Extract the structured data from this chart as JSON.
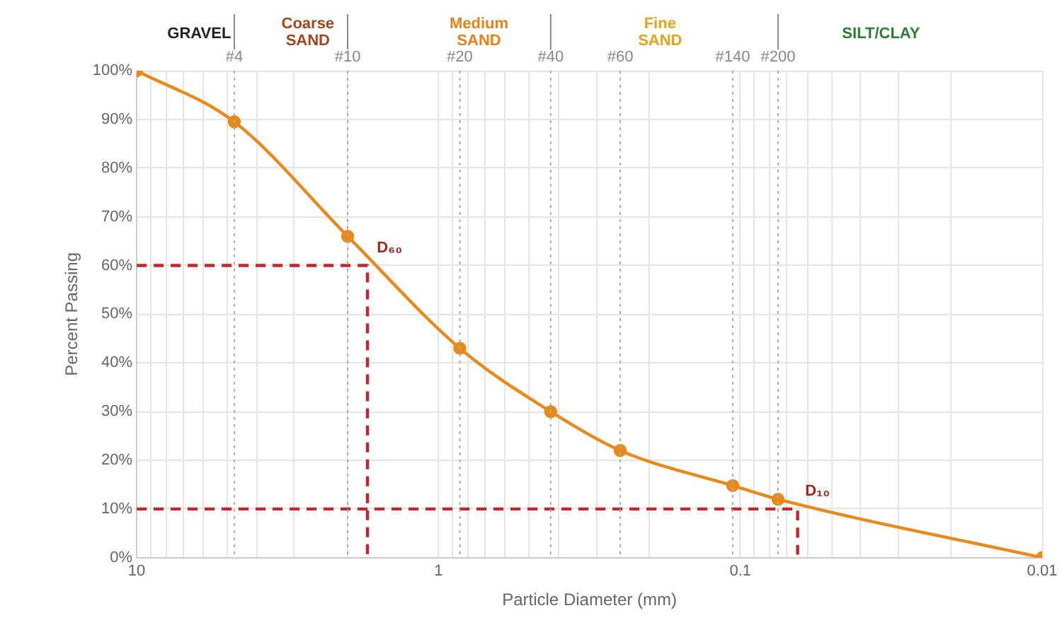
{
  "chart_data": {
    "type": "line",
    "xlabel": "Particle Diameter (mm)",
    "ylabel": "Percent Passing",
    "log": "x",
    "grid": true,
    "legend": false,
    "xlim": [
      10,
      0.01
    ],
    "xticks": [
      10,
      {
        "value": 9,
        "label": null
      },
      {
        "value": 8,
        "label": null
      },
      {
        "value": 7,
        "label": null
      },
      {
        "value": 6,
        "label": null
      },
      {
        "value": 5,
        "label": null
      },
      {
        "value": 4,
        "label": null
      },
      {
        "value": 3,
        "label": null
      },
      {
        "value": 2,
        "label": null
      },
      1,
      {
        "value": 0.9,
        "label": null
      },
      {
        "value": 0.8,
        "label": null
      },
      {
        "value": 0.7,
        "label": null
      },
      {
        "value": 0.6,
        "label": null
      },
      {
        "value": 0.5,
        "label": null
      },
      {
        "value": 0.4,
        "label": null
      },
      {
        "value": 0.3,
        "label": null
      },
      {
        "value": 0.2,
        "label": null
      },
      0.1,
      {
        "value": 0.09,
        "label": null
      },
      {
        "value": 0.08,
        "label": null
      },
      {
        "value": 0.07,
        "label": null
      },
      {
        "value": 0.06,
        "label": null
      },
      {
        "value": 0.05,
        "label": null
      },
      {
        "value": 0.04,
        "label": null
      },
      {
        "value": 0.03,
        "label": null
      },
      {
        "value": 0.02,
        "label": null
      },
      0.01
    ],
    "ylim": [
      0,
      100
    ],
    "yticks": [
      {
        "value": 0,
        "label": "0%"
      },
      {
        "value": 10,
        "label": "10%"
      },
      {
        "value": 20,
        "label": "20%"
      },
      {
        "value": 30,
        "label": "30%"
      },
      {
        "value": 40,
        "label": "40%"
      },
      {
        "value": 50,
        "label": "50%"
      },
      {
        "value": 60,
        "label": "60%"
      },
      {
        "value": 70,
        "label": "70%"
      },
      {
        "value": 80,
        "label": "80%"
      },
      {
        "value": 90,
        "label": "90%"
      },
      {
        "value": 100,
        "label": "100%"
      }
    ],
    "series": [
      {
        "color": "#e8891c",
        "marker": "circle",
        "line_style": "solid",
        "x": [
          10,
          4.75,
          2.0,
          0.85,
          0.425,
          0.25,
          0.106,
          0.075,
          0.01
        ],
        "values": [
          100,
          89.5,
          66,
          43,
          30,
          22,
          14.8,
          12,
          0
        ]
      },
      {
        "color": "#c0272d",
        "marker": "none",
        "line_style": "dashed",
        "x": [
          10,
          1.72,
          1.72
        ],
        "values": [
          60,
          60,
          0
        ]
      },
      {
        "color": "#c0272d",
        "marker": "none",
        "line_style": "dashed",
        "x": [
          10,
          0.0646,
          0.0646
        ],
        "values": [
          10,
          10,
          0
        ]
      }
    ],
    "ref_lines": [
      {
        "axis": "x",
        "value": 4.75,
        "color": "#aaaaaa",
        "line_style": "dotted"
      },
      {
        "axis": "x",
        "value": 2.0,
        "color": "#aaaaaa",
        "line_style": "dotted"
      },
      {
        "axis": "x",
        "value": 0.85,
        "color": "#aaaaaa",
        "line_style": "dotted"
      },
      {
        "axis": "x",
        "value": 0.425,
        "color": "#aaaaaa",
        "line_style": "dotted"
      },
      {
        "axis": "x",
        "value": 0.25,
        "color": "#aaaaaa",
        "line_style": "dotted"
      },
      {
        "axis": "x",
        "value": 0.106,
        "color": "#aaaaaa",
        "line_style": "dotted"
      },
      {
        "axis": "x",
        "value": 0.075,
        "color": "#aaaaaa",
        "line_style": "dotted"
      }
    ],
    "annotations": [
      {
        "text": "#4",
        "x": 4.75,
        "y": 100
      },
      {
        "text": "#10",
        "x": 2.0,
        "y": 100
      },
      {
        "text": "#20",
        "x": 0.85,
        "y": 100
      },
      {
        "text": "#40",
        "x": 0.425,
        "y": 100
      },
      {
        "text": "#60",
        "x": 0.25,
        "y": 100
      },
      {
        "text": "#140",
        "x": 0.106,
        "y": 100
      },
      {
        "text": "#200",
        "x": 0.075,
        "y": 100
      },
      "GRAVEL",
      "Coarse\nSAND",
      "Medium\nSAND",
      "Fine\nSAND",
      "SILT/CLAY",
      {
        "text": "D₆₀",
        "x": 1.6,
        "y": 62
      },
      {
        "text": "D₁₀",
        "x": 0.061,
        "y": 12
      }
    ]
  }
}
